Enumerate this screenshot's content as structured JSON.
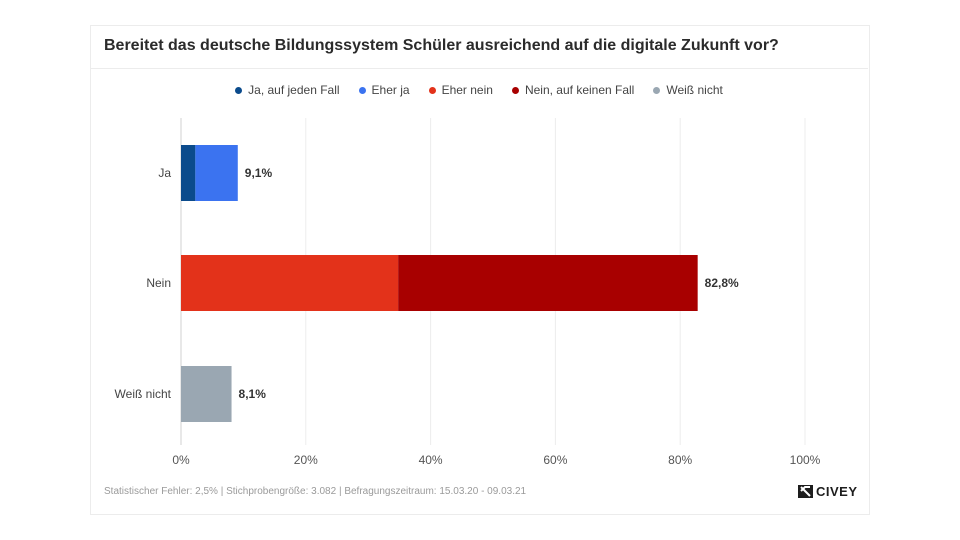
{
  "title": "Bereitet das deutsche Bildungssystem Schüler ausreichend auf die digitale Zukunft vor?",
  "footer": "Statistischer Fehler: 2,5% | Stichprobengröße: 3.082 | Befragungszeitraum: 15.03.20 - 09.03.21",
  "brand": {
    "name": "CIVEY",
    "logo_icon": "civey-logo-icon"
  },
  "legend": [
    {
      "label": "Ja, auf jeden Fall",
      "color": "#0b4b8c"
    },
    {
      "label": "Eher ja",
      "color": "#3b73f0"
    },
    {
      "label": "Eher nein",
      "color": "#e3321a"
    },
    {
      "label": "Nein, auf keinen Fall",
      "color": "#a80000"
    },
    {
      "label": "Weiß nicht",
      "color": "#9aa7b2"
    }
  ],
  "chart_data": {
    "type": "bar",
    "orientation": "horizontal",
    "stacked": true,
    "title": "Bereitet das deutsche Bildungssystem Schüler ausreichend auf die digitale Zukunft vor?",
    "categories": [
      "Ja",
      "Nein",
      "Weiß nicht"
    ],
    "series": [
      {
        "name": "Ja, auf jeden Fall",
        "color": "#0b4b8c",
        "values": [
          2.3,
          0,
          0
        ]
      },
      {
        "name": "Eher ja",
        "color": "#3b73f0",
        "values": [
          6.8,
          0,
          0
        ]
      },
      {
        "name": "Eher nein",
        "color": "#e3321a",
        "values": [
          0,
          34.8,
          0
        ]
      },
      {
        "name": "Nein, auf keinen Fall",
        "color": "#a80000",
        "values": [
          0,
          48.0,
          0
        ]
      },
      {
        "name": "Weiß nicht",
        "color": "#9aa7b2",
        "values": [
          0,
          0,
          8.1
        ]
      }
    ],
    "totals": [
      "9,1%",
      "82,8%",
      "8,1%"
    ],
    "xlim": [
      0,
      100
    ],
    "xticks": [
      0,
      20,
      40,
      60,
      80,
      100
    ],
    "xtick_labels": [
      "0%",
      "20%",
      "40%",
      "60%",
      "80%",
      "100%"
    ],
    "grid": true,
    "legend_position": "top-center"
  }
}
